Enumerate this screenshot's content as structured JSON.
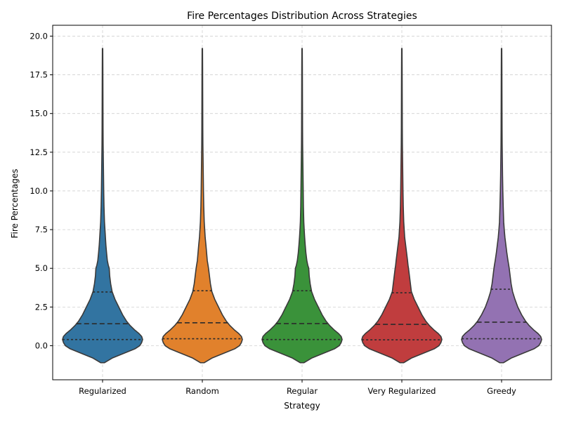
{
  "chart_data": {
    "type": "violin",
    "title": "Fire Percentages Distribution Across Strategies",
    "xlabel": "Strategy",
    "ylabel": "Fire Percentages",
    "ylim": [
      -2.2,
      20.7
    ],
    "yticks": [
      0.0,
      2.5,
      5.0,
      7.5,
      10.0,
      12.5,
      15.0,
      17.5,
      20.0
    ],
    "ytick_labels": [
      "0.0",
      "2.5",
      "5.0",
      "7.5",
      "10.0",
      "12.5",
      "15.0",
      "17.5",
      "20.0"
    ],
    "grid": true,
    "categories": [
      "Regularized",
      "Random",
      "Regular",
      "Very Regularized",
      "Greedy"
    ],
    "colors": [
      "#3274a1",
      "#e1812c",
      "#3a923a",
      "#c03d3e",
      "#9372b2"
    ],
    "range": {
      "min": -1.1,
      "max": 19.2
    },
    "quartiles": [
      {
        "q1": 0.4,
        "median": 1.42,
        "q3": 3.47
      },
      {
        "q1": 0.45,
        "median": 1.48,
        "q3": 3.55
      },
      {
        "q1": 0.4,
        "median": 1.43,
        "q3": 3.55
      },
      {
        "q1": 0.38,
        "median": 1.38,
        "q3": 3.42
      },
      {
        "q1": 0.45,
        "median": 1.52,
        "q3": 3.65
      }
    ],
    "density_profile": {
      "y": [
        -1.1,
        -0.8,
        -0.5,
        -0.2,
        0.0,
        0.2,
        0.4,
        0.6,
        0.8,
        1.0,
        1.3,
        1.6,
        2.0,
        2.5,
        3.0,
        3.5,
        4.0,
        4.5,
        5.0,
        5.2,
        5.5,
        6.0,
        6.5,
        7.0,
        7.5,
        8.0,
        9.0,
        10.0,
        11.0,
        12.0,
        13.0,
        14.0,
        16.0,
        18.0,
        19.2
      ],
      "halfwidths": [
        [
          0.02,
          0.1,
          0.22,
          0.34,
          0.39,
          0.41,
          0.42,
          0.41,
          0.38,
          0.34,
          0.29,
          0.25,
          0.21,
          0.17,
          0.13,
          0.1,
          0.085,
          0.075,
          0.07,
          0.06,
          0.05,
          0.042,
          0.035,
          0.03,
          0.025,
          0.02,
          0.015,
          0.012,
          0.01,
          0.008,
          0.006,
          0.005,
          0.004,
          0.003,
          0.002
        ],
        [
          0.02,
          0.1,
          0.22,
          0.34,
          0.39,
          0.41,
          0.42,
          0.41,
          0.38,
          0.34,
          0.29,
          0.25,
          0.21,
          0.17,
          0.13,
          0.1,
          0.085,
          0.075,
          0.065,
          0.06,
          0.052,
          0.045,
          0.038,
          0.03,
          0.025,
          0.02,
          0.015,
          0.012,
          0.01,
          0.008,
          0.006,
          0.005,
          0.004,
          0.003,
          0.002
        ],
        [
          0.02,
          0.1,
          0.22,
          0.34,
          0.39,
          0.41,
          0.42,
          0.41,
          0.38,
          0.34,
          0.29,
          0.25,
          0.21,
          0.17,
          0.13,
          0.1,
          0.085,
          0.075,
          0.07,
          0.06,
          0.05,
          0.04,
          0.033,
          0.027,
          0.022,
          0.018,
          0.014,
          0.012,
          0.01,
          0.008,
          0.006,
          0.005,
          0.004,
          0.003,
          0.002
        ],
        [
          0.02,
          0.1,
          0.22,
          0.34,
          0.39,
          0.41,
          0.42,
          0.41,
          0.38,
          0.34,
          0.29,
          0.25,
          0.21,
          0.17,
          0.13,
          0.1,
          0.09,
          0.08,
          0.07,
          0.065,
          0.06,
          0.05,
          0.04,
          0.03,
          0.025,
          0.02,
          0.015,
          0.012,
          0.01,
          0.008,
          0.006,
          0.005,
          0.004,
          0.003,
          0.002
        ],
        [
          0.02,
          0.1,
          0.22,
          0.34,
          0.39,
          0.41,
          0.42,
          0.41,
          0.38,
          0.34,
          0.29,
          0.25,
          0.21,
          0.17,
          0.14,
          0.115,
          0.1,
          0.09,
          0.08,
          0.075,
          0.067,
          0.055,
          0.045,
          0.035,
          0.028,
          0.022,
          0.017,
          0.013,
          0.01,
          0.008,
          0.006,
          0.005,
          0.004,
          0.003,
          0.002
        ]
      ]
    }
  }
}
